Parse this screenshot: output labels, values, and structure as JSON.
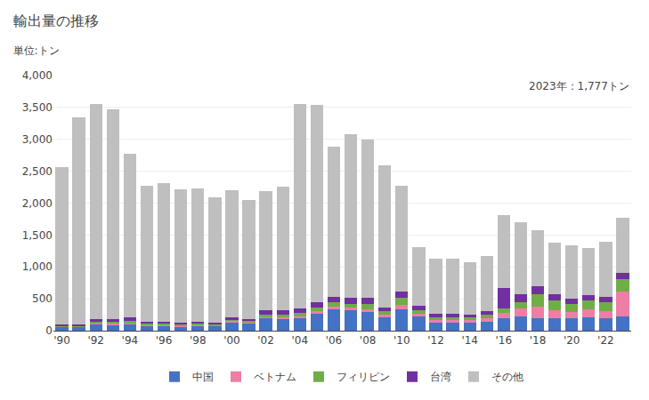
{
  "chart_data": {
    "type": "bar",
    "stacked": true,
    "title": "輸出量の推移",
    "subtitle": "単位:トン",
    "annotations": [
      "2023年：1,777トン"
    ],
    "categories": [
      "'90",
      null,
      "'92",
      null,
      "'94",
      null,
      "'96",
      null,
      "'98",
      null,
      "'00",
      null,
      "'02",
      null,
      "'04",
      null,
      "'06",
      null,
      "'08",
      null,
      "'10",
      null,
      "'12",
      null,
      "'14",
      null,
      "'16",
      null,
      "'18",
      null,
      "'20",
      null,
      "'22",
      null
    ],
    "series": [
      {
        "name": "中国",
        "color": "#4472C4",
        "values": [
          60,
          60,
          100,
          90,
          100,
          70,
          70,
          60,
          70,
          70,
          130,
          120,
          200,
          190,
          200,
          270,
          340,
          320,
          290,
          210,
          330,
          220,
          130,
          130,
          130,
          140,
          200,
          220,
          200,
          190,
          190,
          210,
          200,
          220
        ]
      },
      {
        "name": "ベトナム",
        "color": "#ED7EA6",
        "values": [
          5,
          5,
          15,
          15,
          15,
          15,
          15,
          10,
          15,
          10,
          20,
          15,
          20,
          25,
          25,
          35,
          40,
          40,
          50,
          40,
          80,
          50,
          40,
          40,
          40,
          50,
          80,
          130,
          170,
          130,
          100,
          120,
          110,
          400
        ]
      },
      {
        "name": "フィリピン",
        "color": "#70AD47",
        "values": [
          15,
          15,
          30,
          30,
          40,
          25,
          25,
          25,
          25,
          20,
          30,
          25,
          25,
          35,
          50,
          55,
          60,
          65,
          80,
          50,
          100,
          55,
          45,
          45,
          40,
          55,
          70,
          90,
          200,
          160,
          130,
          140,
          130,
          190
        ]
      },
      {
        "name": "台湾",
        "color": "#7030A0",
        "values": [
          20,
          20,
          40,
          40,
          55,
          35,
          35,
          35,
          30,
          25,
          25,
          25,
          75,
          70,
          75,
          85,
          90,
          90,
          90,
          65,
          110,
          70,
          50,
          50,
          40,
          60,
          320,
          130,
          130,
          90,
          80,
          90,
          90,
          100
        ]
      },
      {
        "name": "その他",
        "color": "#BFBFBF",
        "values": [
          2460,
          3250,
          3370,
          3300,
          2570,
          2130,
          2170,
          2090,
          2090,
          1970,
          2000,
          1860,
          1870,
          1940,
          3200,
          3090,
          2360,
          2570,
          2490,
          2230,
          1650,
          920,
          870,
          870,
          820,
          870,
          1140,
          1130,
          870,
          810,
          840,
          740,
          870,
          867
        ]
      }
    ],
    "ylim": [
      0,
      4000
    ],
    "yticks": [
      0,
      500,
      {
        "value": 1000,
        "label": "1,000"
      },
      {
        "value": 1500,
        "label": "1,500"
      },
      {
        "value": 2000,
        "label": "2,000"
      },
      {
        "value": 2500,
        "label": "2,500"
      },
      {
        "value": 3000,
        "label": "3,000"
      },
      {
        "value": 3500,
        "label": "3,500"
      },
      {
        "value": 4000,
        "label": "4,000"
      }
    ],
    "grid": true,
    "legend": "bottom"
  }
}
